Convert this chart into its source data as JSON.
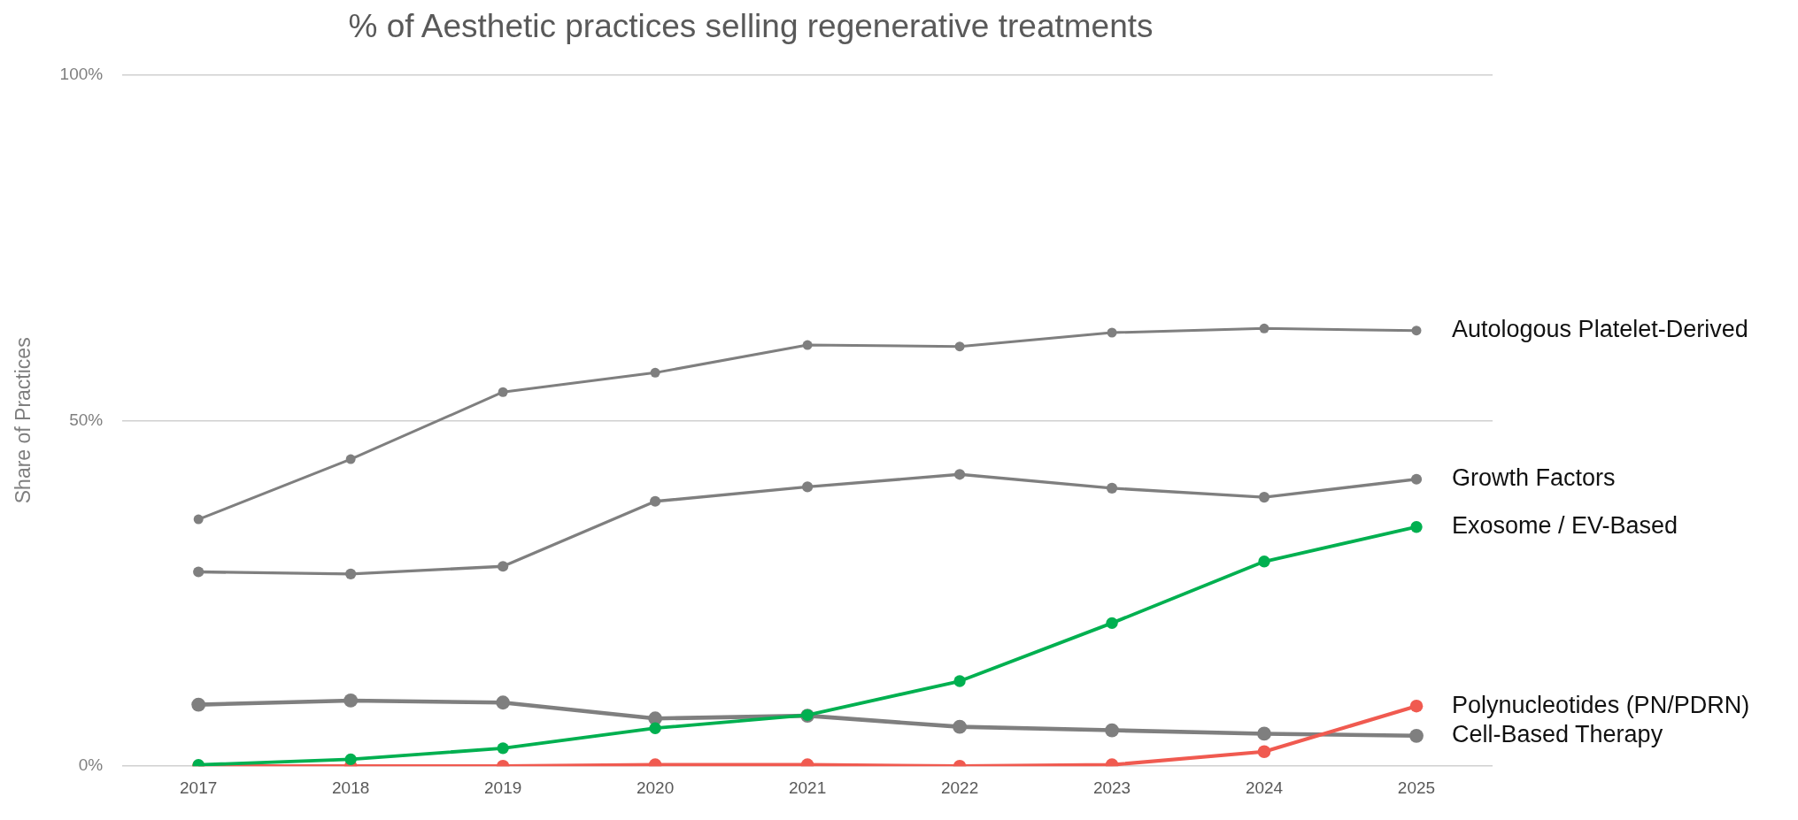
{
  "chart_data": {
    "type": "line",
    "title": "% of Aesthetic practices selling regenerative treatments",
    "ylabel": "Share of Practices",
    "categories": [
      "2017",
      "2018",
      "2019",
      "2020",
      "2021",
      "2022",
      "2023",
      "2024",
      "2025"
    ],
    "series": [
      {
        "name": "Autologous Platelet-Derived",
        "color": "#7f7f7f",
        "values": [
          35.7,
          44.4,
          54.1,
          56.9,
          60.9,
          60.7,
          62.7,
          63.3,
          63.0
        ]
      },
      {
        "name": "Growth Factors",
        "color": "#7f7f7f",
        "values": [
          28.1,
          27.8,
          28.9,
          38.3,
          40.4,
          42.2,
          40.2,
          38.9,
          41.5
        ]
      },
      {
        "name": "Exosome / EV-Based",
        "color": "#00b050",
        "values": [
          0.2,
          1.0,
          2.6,
          5.5,
          7.4,
          12.3,
          20.7,
          29.6,
          34.6
        ]
      },
      {
        "name": "Polynucleotides (PN/PDRN)",
        "color": "#f05a50",
        "values": [
          0,
          0,
          0,
          0.2,
          0.2,
          0,
          0.2,
          2.1,
          8.7
        ]
      },
      {
        "name": "Cell-Based Therapy",
        "color": "#7f7f7f",
        "values": [
          8.9,
          9.5,
          9.2,
          6.9,
          7.3,
          5.7,
          5.2,
          4.7,
          4.4
        ]
      }
    ],
    "ylim": [
      0,
      100
    ],
    "yticks": [
      {
        "value": 0,
        "label": "0%"
      },
      {
        "value": 50,
        "label": "50%"
      },
      {
        "value": 100,
        "label": "100%"
      }
    ],
    "grid": "y",
    "legend": false,
    "marker": "circle",
    "line_style": "solid"
  }
}
